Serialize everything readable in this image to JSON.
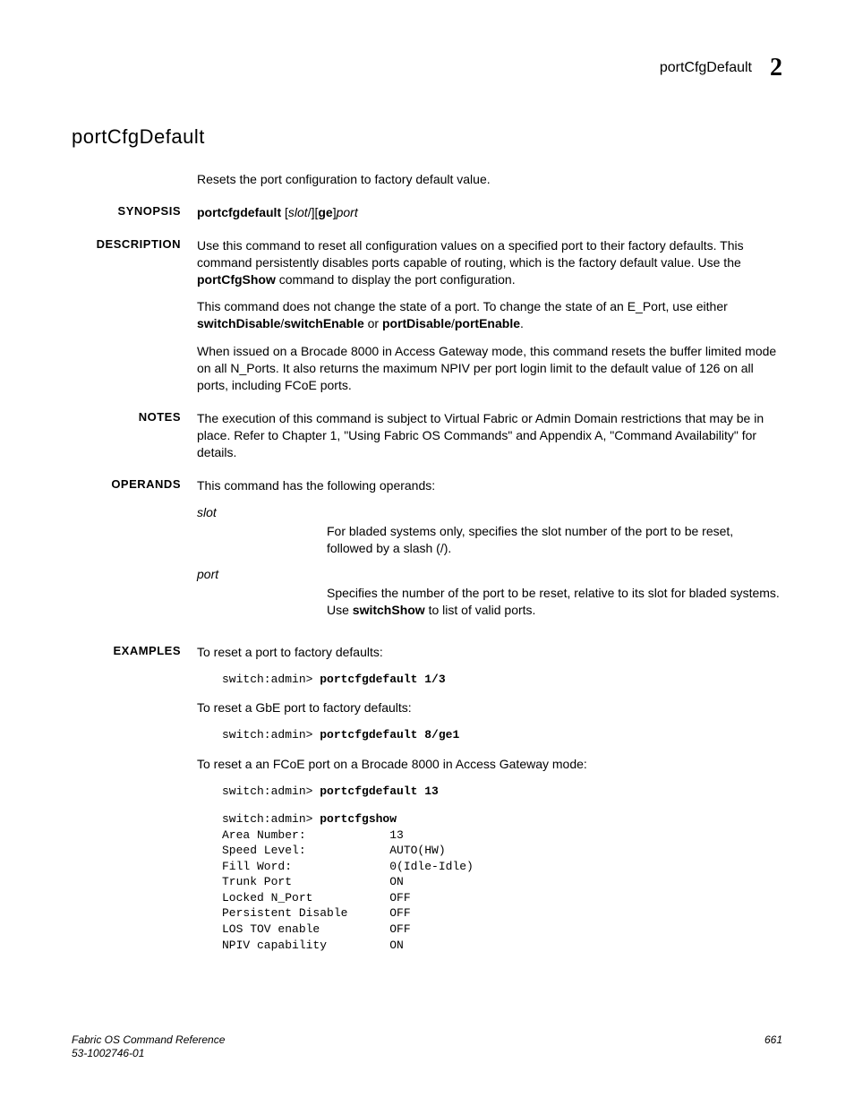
{
  "header": {
    "command": "portCfgDefault",
    "chapter": "2"
  },
  "title": "portCfgDefault",
  "intro": "Resets the port configuration to factory default value.",
  "synopsis": {
    "label": "SYNOPSIS",
    "cmd": "portcfgdefault",
    "open_bracket": " [",
    "slot": "slot",
    "slash": "/][",
    "ge": "ge",
    "close_bracket": "]",
    "port": "port"
  },
  "description": {
    "label": "DESCRIPTION",
    "p1a": "Use this command to reset all configuration values on a specified port to their factory defaults. This command persistently disables ports capable of routing, which is the factory default value. Use the ",
    "p1b": "portCfgShow",
    "p1c": " command to display the port configuration.",
    "p2a": "This command does not change the state of a port. To change the state of an E_Port, use either ",
    "p2b": "switchDisable",
    "p2c": "/",
    "p2d": "switchEnable",
    "p2e": " or ",
    "p2f": "portDisable",
    "p2g": "/",
    "p2h": "portEnable",
    "p2i": ".",
    "p3": "When issued on a Brocade 8000 in Access Gateway mode, this command resets the buffer limited mode on all N_Ports. It also returns the maximum NPIV per port login limit to the default value of 126 on all ports, including FCoE ports."
  },
  "notes": {
    "label": "NOTES",
    "text": "The execution of this command is subject to Virtual Fabric or Admin Domain restrictions that may be in place. Refer to Chapter 1, \"Using Fabric OS Commands\" and Appendix A, \"Command Availability\" for details."
  },
  "operands": {
    "label": "OPERANDS",
    "intro": "This command has the following operands:",
    "slot_term": "slot",
    "slot_desc": "For bladed systems only, specifies the slot number of the port to be reset, followed by a slash (/).",
    "port_term": "port",
    "port_desc_a": "Specifies the number of the port to be reset, relative to its slot for bladed systems. Use ",
    "port_desc_b": "switchShow",
    "port_desc_c": " to list of valid ports."
  },
  "examples": {
    "label": "EXAMPLES",
    "ex1_intro": "To reset a port to factory defaults:",
    "ex1_prompt": "switch:admin> ",
    "ex1_cmd": "portcfgdefault 1/3",
    "ex2_intro": "To reset a GbE port to factory defaults:",
    "ex2_prompt": "switch:admin> ",
    "ex2_cmd": "portcfgdefault 8/ge1",
    "ex3_intro": "To reset a an FCoE port on a Brocade 8000 in Access Gateway mode:",
    "ex3_prompt": "switch:admin> ",
    "ex3_cmd": "portcfgdefault 13",
    "ex4_prompt": "switch:admin> ",
    "ex4_cmd": "portcfgshow",
    "output_rows": [
      [
        "Area Number:",
        "13"
      ],
      [
        "Speed Level:",
        "AUTO(HW)"
      ],
      [
        "Fill Word:",
        "0(Idle-Idle)"
      ],
      [
        "Trunk Port",
        "ON"
      ],
      [
        "Locked N_Port",
        "OFF"
      ],
      [
        "Persistent Disable",
        "OFF"
      ],
      [
        "LOS TOV enable",
        "OFF"
      ],
      [
        "NPIV capability",
        "ON"
      ]
    ]
  },
  "footer": {
    "doc_title": "Fabric OS Command Reference",
    "doc_num": "53-1002746-01",
    "page_num": "661"
  },
  "styling": {
    "body_font": "Arial",
    "mono_font": "Courier New",
    "text_color": "#000000",
    "bg_color": "#ffffff",
    "title_fontsize": 22,
    "label_fontsize": 13,
    "body_fontsize": 14,
    "code_fontsize": 13,
    "footer_fontsize": 12,
    "chapter_fontsize": 28,
    "label_col_width": 140,
    "operand_indent": 145,
    "code_indent": 28,
    "output_col1_width": 24
  }
}
